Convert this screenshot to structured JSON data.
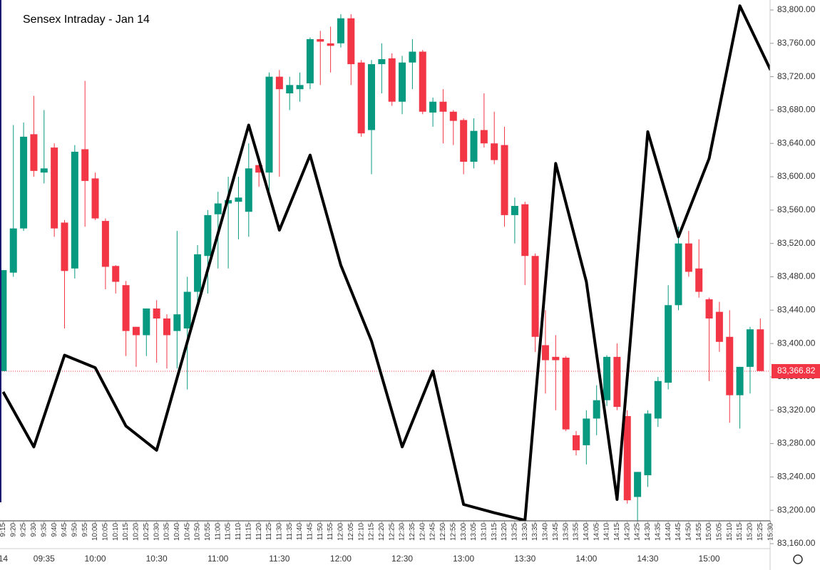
{
  "chart_data": {
    "type": "candlestick",
    "title": "Sensex Intraday - Jan 14",
    "categories": [
      "9:15",
      "9:20",
      "9:25",
      "9:30",
      "9:35",
      "9:40",
      "9:45",
      "9:50",
      "9:55",
      "10:00",
      "10:05",
      "10:10",
      "10:15",
      "10:20",
      "10:25",
      "10:30",
      "10:35",
      "10:40",
      "10:45",
      "10:50",
      "10:55",
      "11:00",
      "11:05",
      "11:10",
      "11:15",
      "11:20",
      "11:25",
      "11:30",
      "11:35",
      "11:40",
      "11:45",
      "11:50",
      "11:55",
      "12:00",
      "12:05",
      "12:10",
      "12:15",
      "12:20",
      "12:25",
      "12:30",
      "12:35",
      "12:40",
      "12:45",
      "12:50",
      "12:55",
      "13:00",
      "13:05",
      "13:10",
      "13:15",
      "13:20",
      "13:25",
      "13:30",
      "13:35",
      "13:40",
      "13:45",
      "13:50",
      "13:55",
      "14:00",
      "14:05",
      "14:10",
      "14:15",
      "14:20",
      "14:25",
      "14:30",
      "14:35",
      "14:40",
      "14:45",
      "14:50",
      "14:55",
      "15:00",
      "15:05",
      "15:10",
      "15:15",
      "15:20",
      "15:25",
      "15:30"
    ],
    "open": [
      83367,
      83485,
      83538,
      83651,
      83605,
      83635,
      83545,
      83490,
      83633,
      83598,
      83547,
      83493,
      83470,
      83420,
      83410,
      83442,
      83430,
      83415,
      83418,
      83462,
      83505,
      83555,
      83568,
      83570,
      83558,
      83614,
      83605,
      83720,
      83700,
      83705,
      83712,
      83765,
      83760,
      83760,
      83790,
      83737,
      83656,
      83735,
      83742,
      83690,
      83737,
      83750,
      83677,
      83690,
      83678,
      83668,
      83618,
      83656,
      83640,
      83638,
      83554,
      83567,
      83505,
      83398,
      83384,
      83383,
      83290,
      83278,
      83310,
      83332,
      83384,
      83313,
      83216,
      83242,
      83310,
      83353,
      83446,
      83520,
      83490,
      83453,
      83438,
      83408,
      83338,
      83372,
      83417,
      null
    ],
    "high": [
      83488,
      83662,
      83665,
      83697,
      83680,
      83640,
      83548,
      83638,
      83715,
      83605,
      83550,
      83494,
      83475,
      83420,
      83442,
      83452,
      83435,
      83535,
      83480,
      83518,
      83560,
      83582,
      83600,
      83600,
      83640,
      83614,
      83725,
      83728,
      83720,
      83725,
      83767,
      83775,
      83780,
      83795,
      83795,
      83740,
      83740,
      83760,
      83748,
      83745,
      83765,
      83752,
      83695,
      83705,
      83680,
      83670,
      83670,
      83700,
      83678,
      83660,
      83575,
      83570,
      83508,
      83440,
      83410,
      83385,
      83295,
      83320,
      83350,
      83386,
      83400,
      83320,
      83246,
      83320,
      83360,
      83470,
      83540,
      83535,
      83525,
      83455,
      83450,
      83440,
      83372,
      83420,
      83430,
      null
    ],
    "low": [
      83367,
      83480,
      83535,
      83600,
      83592,
      83528,
      83418,
      83478,
      83540,
      83548,
      83465,
      83460,
      83385,
      83372,
      83385,
      83377,
      83370,
      83370,
      83345,
      83450,
      83460,
      83490,
      83490,
      83525,
      83528,
      83588,
      83580,
      83600,
      83680,
      83690,
      83705,
      83710,
      83725,
      83755,
      83710,
      83648,
      83603,
      83700,
      83685,
      83675,
      83705,
      83675,
      83660,
      83640,
      83638,
      83603,
      83610,
      83635,
      83615,
      83540,
      83520,
      83470,
      83390,
      83340,
      83320,
      83295,
      83266,
      83255,
      83290,
      83325,
      83320,
      83208,
      83185,
      83228,
      83300,
      83345,
      83440,
      83480,
      83455,
      83355,
      83390,
      83305,
      83298,
      83340,
      83367,
      null
    ],
    "close": [
      83488,
      83538,
      83648,
      83607,
      83610,
      83538,
      83487,
      83630,
      83595,
      83550,
      83492,
      83474,
      83415,
      83410,
      83442,
      83430,
      83410,
      83435,
      83462,
      83507,
      83554,
      83568,
      83572,
      83575,
      83610,
      83605,
      83720,
      83705,
      83710,
      83710,
      83765,
      83762,
      83757,
      83790,
      83735,
      83652,
      83735,
      83741,
      83690,
      83737,
      83750,
      83678,
      83690,
      83678,
      83667,
      83618,
      83655,
      83640,
      83620,
      83554,
      83565,
      83505,
      83408,
      83380,
      83380,
      83297,
      83272,
      83310,
      83332,
      83384,
      83324,
      83212,
      83246,
      83316,
      83355,
      83446,
      83520,
      83486,
      83462,
      83430,
      83402,
      83338,
      83372,
      83417,
      83367,
      null
    ],
    "up_color": "#089981",
    "down_color": "#f23645",
    "line": {
      "color": "#000000",
      "x": [
        "9:15",
        "9:30",
        "9:45",
        "10:00",
        "10:15",
        "10:30",
        "11:15",
        "11:30",
        "11:45",
        "12:00",
        "12:15",
        "12:30",
        "12:45",
        "13:00",
        "13:15",
        "13:30",
        "13:45",
        "14:00",
        "14:15",
        "14:30",
        "14:45",
        "15:00",
        "15:15",
        "15:30"
      ],
      "values": [
        83342,
        83276,
        83386,
        83371,
        83301,
        83272,
        83662,
        83536,
        83626,
        83494,
        83403,
        83276,
        83367,
        83207,
        83197,
        83188,
        83616,
        83474,
        83213,
        83654,
        83528,
        83622,
        83805,
        83728
      ]
    },
    "ylim": [
      83160,
      83800
    ],
    "yticks": [
      {
        "value": 83160,
        "label": "83,160.00"
      },
      {
        "value": 83200,
        "label": "83,200.00"
      },
      {
        "value": 83240,
        "label": "83,240.00"
      },
      {
        "value": 83280,
        "label": "83,280.00"
      },
      {
        "value": 83320,
        "label": "83,320.00"
      },
      {
        "value": 83360,
        "label": "83,360.00"
      },
      {
        "value": 83400,
        "label": "83,400.00"
      },
      {
        "value": 83440,
        "label": "83,440.00"
      },
      {
        "value": 83480,
        "label": "83,480.00"
      },
      {
        "value": 83520,
        "label": "83,520.00"
      },
      {
        "value": 83560,
        "label": "83,560.00"
      },
      {
        "value": 83600,
        "label": "83,600.00"
      },
      {
        "value": 83640,
        "label": "83,640.00"
      },
      {
        "value": 83680,
        "label": "83,680.00"
      },
      {
        "value": 83720,
        "label": "83,720.00"
      },
      {
        "value": 83760,
        "label": "83,760.00"
      },
      {
        "value": 83800,
        "label": "83,800.00"
      }
    ],
    "major_ticks": [
      {
        "value": "9:15",
        "label": "14"
      },
      "09:35",
      "10:00",
      "10:30",
      "11:00",
      "11:30",
      "12:00",
      "12:30",
      "13:00",
      "13:30",
      "14:00",
      "14:30",
      "15:00"
    ],
    "last_price": {
      "value": 83366.82,
      "label": "83,366.82"
    }
  }
}
